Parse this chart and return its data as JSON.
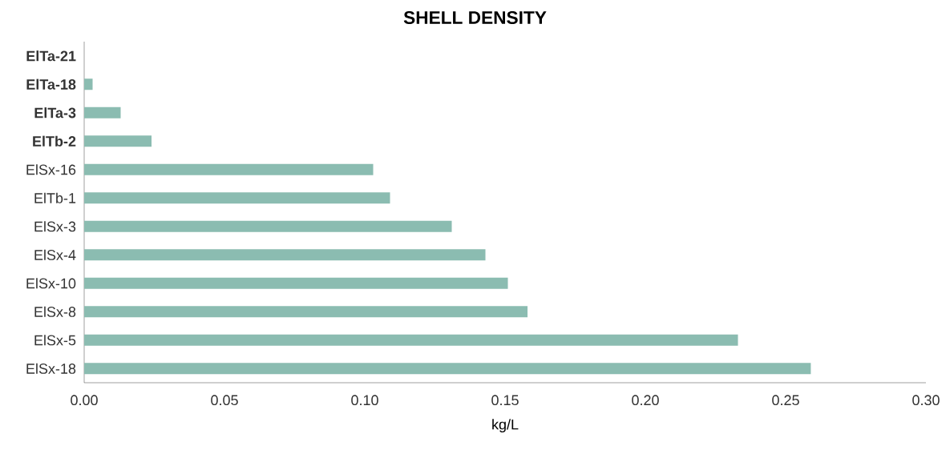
{
  "chart_data": {
    "type": "bar",
    "orientation": "horizontal",
    "title": "SHELL DENSITY",
    "xlabel": "kg/L",
    "categories": [
      "**ElTa-21**",
      "**ElTa-18**",
      "**ElTa-3**",
      "**ElTb-2**",
      "ElSx-16",
      "ElTb-1",
      "ElSx-3",
      "ElSx-4",
      "ElSx-10",
      "ElSx-8",
      "ElSx-5",
      "ElSx-18"
    ],
    "values": [
      0,
      0.003,
      0.013,
      0.024,
      0.103,
      0.109,
      0.131,
      0.143,
      0.151,
      0.158,
      0.233,
      0.259
    ],
    "color": "#8bbcb1",
    "xlim": [
      0,
      0.3
    ],
    "xticks": [
      {
        "value": 0,
        "label": "0.00"
      },
      {
        "value": 0.05,
        "label": "0.05"
      },
      {
        "value": 0.1,
        "label": "0.10"
      },
      {
        "value": 0.15,
        "label": "0.15"
      },
      {
        "value": 0.2,
        "label": "0.20"
      },
      {
        "value": 0.25,
        "label": "0.25"
      },
      {
        "value": 0.3,
        "label": "0.30"
      }
    ]
  }
}
